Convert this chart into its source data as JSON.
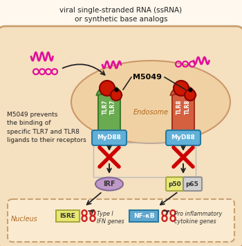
{
  "bg_color": "#fef8ee",
  "cell_fill": "#f5e0c0",
  "cell_edge": "#c8a070",
  "endo_fill": "#f0d0a0",
  "endo_edge": "#c89060",
  "nucleus_fill": "#faebd0",
  "nucleus_edge": "#c8a070",
  "title": "viral single-stranded RNA (ssRNA)\nor synthetic base analogs",
  "m5049_label": "M5049",
  "endosome_label": "Endosome",
  "nucleus_label": "Nucleus",
  "tlr7_fill": "#6aaa50",
  "tlr7_edge": "#3a7a28",
  "tlr8_fill": "#d46040",
  "tlr8_edge": "#a03018",
  "myd88_fill": "#60b0d8",
  "myd88_edge": "#2878a0",
  "irf_fill": "#c098c8",
  "irf_edge": "#806898",
  "p50_fill": "#e8e878",
  "p50_edge": "#a8a840",
  "p65_fill": "#d0d0d0",
  "p65_edge": "#909090",
  "nfkb_fill": "#60a8d0",
  "nfkb_edge": "#2878a0",
  "isre_fill": "#e8e870",
  "isre_edge": "#a8a840",
  "red_x": "#cc0000",
  "arrow_c": "#222222",
  "ssrna_c": "#e0109a",
  "prevents_text": "M5049 prevents\nthe binding of\nspecific TLR7 and TLR8\nligands to their receptors",
  "dna_c": "#cc2020"
}
